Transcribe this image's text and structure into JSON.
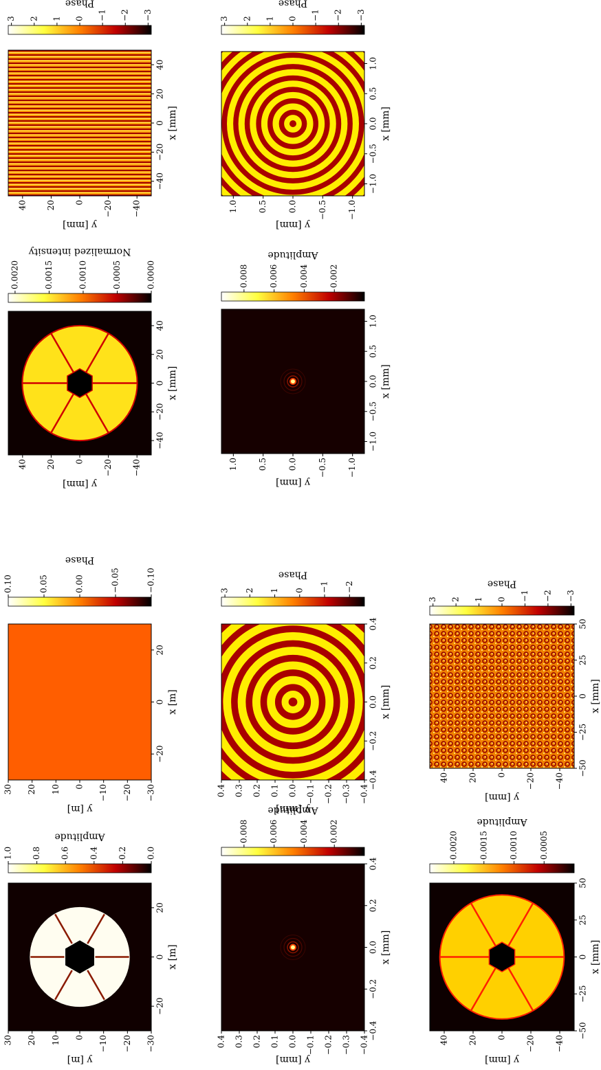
{
  "chart_data": [
    {
      "type": "heatmap",
      "xlabel": "x [m]",
      "ylabel": "y [m]",
      "xlim": [
        -30,
        30
      ],
      "ylim": [
        -30,
        30
      ],
      "xticks": [
        {
          "value": -20,
          "label": "−20"
        },
        0,
        20
      ],
      "yticks": [
        30,
        20,
        10,
        0,
        {
          "value": -10,
          "label": "−10"
        },
        {
          "value": -20,
          "label": "−20"
        },
        {
          "value": -30,
          "label": "−30"
        }
      ],
      "colorbar": {
        "label": "Amplitude",
        "lim": [
          0,
          1.0
        ],
        "ticks": [
          {
            "value": 1.0,
            "label": "1.0"
          },
          {
            "value": 0.8,
            "label": "0.8"
          },
          {
            "value": 0.6,
            "label": "0.6"
          },
          {
            "value": 0.4,
            "label": "0.4"
          },
          {
            "value": 0.2,
            "label": "0.2"
          },
          {
            "value": 0,
            "label": "0.0"
          }
        ]
      }
    },
    {
      "type": "heatmap",
      "xlabel": "x [m]",
      "ylabel": "y [m]",
      "xlim": [
        -30,
        30
      ],
      "ylim": [
        -30,
        30
      ],
      "xticks": [
        {
          "value": -20,
          "label": "−20"
        },
        0,
        20
      ],
      "yticks": [
        30,
        20,
        10,
        0,
        {
          "value": -10,
          "label": "−10"
        },
        {
          "value": -20,
          "label": "−20"
        },
        {
          "value": -30,
          "label": "−30"
        }
      ],
      "colorbar": {
        "label": "Phase",
        "lim": [
          -0.1,
          0.1
        ],
        "ticks": [
          {
            "value": 0.1,
            "label": "0.10"
          },
          {
            "value": 0.05,
            "label": "0.05"
          },
          {
            "value": 0,
            "label": "0.00"
          },
          {
            "value": -0.05,
            "label": "−0.05"
          },
          {
            "value": -0.1,
            "label": "−0.10"
          }
        ]
      }
    },
    {
      "type": "heatmap",
      "xlabel": "x [mm]",
      "ylabel": "y [mm]",
      "xlim": [
        -50,
        50
      ],
      "ylim": [
        -50,
        50
      ],
      "xticks": [
        {
          "value": -40,
          "label": "−40"
        },
        {
          "value": -20,
          "label": "−20"
        },
        0,
        20,
        40
      ],
      "yticks": [
        40,
        20,
        0,
        {
          "value": -20,
          "label": "−20"
        },
        {
          "value": -40,
          "label": "−40"
        }
      ],
      "colorbar": {
        "label": "Normalized intensity",
        "lim": [
          0,
          0.0021
        ],
        "ticks": [
          {
            "value": 0.002,
            "label": "0.0020"
          },
          {
            "value": 0.0015,
            "label": "0.0015"
          },
          {
            "value": 0.001,
            "label": "0.0010"
          },
          {
            "value": 0.0005,
            "label": "0.0005"
          },
          {
            "value": 0,
            "label": "0.0000"
          }
        ]
      }
    },
    {
      "type": "heatmap",
      "xlabel": "x [mm]",
      "ylabel": "y [mm]",
      "xlim": [
        -50,
        50
      ],
      "ylim": [
        -50,
        50
      ],
      "xticks": [
        {
          "value": -40,
          "label": "−40"
        },
        {
          "value": -20,
          "label": "−20"
        },
        0,
        20,
        40
      ],
      "yticks": [
        40,
        20,
        0,
        {
          "value": -20,
          "label": "−20"
        },
        {
          "value": -40,
          "label": "−40"
        }
      ],
      "colorbar": {
        "label": "Phase",
        "lim": [
          -3.14,
          3.14
        ],
        "ticks": [
          3,
          2,
          1,
          0,
          {
            "value": -1,
            "label": "−1"
          },
          {
            "value": -2,
            "label": "−2"
          },
          {
            "value": -3,
            "label": "−3"
          }
        ]
      }
    },
    {
      "type": "heatmap",
      "xlabel": "x [mm]",
      "ylabel": "y [mm]",
      "xlim": [
        -0.4,
        0.4
      ],
      "ylim": [
        -0.4,
        0.4
      ],
      "xticks": [
        {
          "value": -0.4,
          "label": "−0.4"
        },
        {
          "value": -0.2,
          "label": "−0.2"
        },
        {
          "value": 0,
          "label": "0.0"
        },
        0.2,
        0.4
      ],
      "yticks": [
        0.4,
        0.3,
        0.2,
        0.1,
        {
          "value": 0,
          "label": "0.0"
        },
        {
          "value": -0.1,
          "label": "−0.1"
        },
        {
          "value": -0.2,
          "label": "−0.2"
        },
        {
          "value": -0.3,
          "label": "−0.3"
        },
        {
          "value": -0.4,
          "label": "−0.4"
        }
      ],
      "colorbar": {
        "label": "Amplitude",
        "lim": [
          0,
          0.0095
        ],
        "ticks": [
          0.008,
          0.006,
          0.004,
          0.002
        ]
      }
    },
    {
      "type": "heatmap",
      "xlabel": "x [mm]",
      "ylabel": "y [mm]",
      "xlim": [
        -0.4,
        0.4
      ],
      "ylim": [
        -0.4,
        0.4
      ],
      "xticks": [
        {
          "value": -0.4,
          "label": "−0.4"
        },
        {
          "value": -0.2,
          "label": "−0.2"
        },
        {
          "value": 0,
          "label": "0.0"
        },
        0.2,
        0.4
      ],
      "yticks": [
        0.4,
        0.3,
        0.2,
        0.1,
        {
          "value": 0,
          "label": "0.0"
        },
        {
          "value": -0.1,
          "label": "−0.1"
        },
        {
          "value": -0.2,
          "label": "−0.2"
        },
        {
          "value": -0.3,
          "label": "−0.3"
        },
        {
          "value": -0.4,
          "label": "−0.4"
        }
      ],
      "colorbar": {
        "label": "Phase",
        "lim": [
          -2.6,
          3.14
        ],
        "ticks": [
          3,
          2,
          1,
          0,
          {
            "value": -1,
            "label": "−1"
          },
          {
            "value": -2,
            "label": "−2"
          }
        ]
      }
    },
    {
      "type": "heatmap",
      "xlabel": "x [mm]",
      "ylabel": "y [mm]",
      "xlim": [
        -1.2,
        1.2
      ],
      "ylim": [
        -1.2,
        1.2
      ],
      "xticks": [
        {
          "value": -1,
          "label": "−1.0"
        },
        {
          "value": -0.5,
          "label": "−0.5"
        },
        {
          "value": 0,
          "label": "0.0"
        },
        0.5,
        {
          "value": 1,
          "label": "1.0"
        }
      ],
      "yticks": [
        {
          "value": 1,
          "label": "1.0"
        },
        0.5,
        {
          "value": 0,
          "label": "0.0"
        },
        {
          "value": -0.5,
          "label": "−0.5"
        },
        {
          "value": -1,
          "label": "−1.0"
        }
      ],
      "colorbar": {
        "label": "Amplitude",
        "lim": [
          0,
          0.0095
        ],
        "ticks": [
          0.008,
          0.006,
          0.004,
          0.002
        ]
      }
    },
    {
      "type": "heatmap",
      "xlabel": "x [mm]",
      "ylabel": "y [mm]",
      "xlim": [
        -1.2,
        1.2
      ],
      "ylim": [
        -1.2,
        1.2
      ],
      "xticks": [
        {
          "value": -1,
          "label": "−1.0"
        },
        {
          "value": -0.5,
          "label": "−0.5"
        },
        {
          "value": 0,
          "label": "0.0"
        },
        0.5,
        {
          "value": 1,
          "label": "1.0"
        }
      ],
      "yticks": [
        {
          "value": 1,
          "label": "1.0"
        },
        0.5,
        {
          "value": 0,
          "label": "0.0"
        },
        {
          "value": -0.5,
          "label": "−0.5"
        },
        {
          "value": -1,
          "label": "−1.0"
        }
      ],
      "colorbar": {
        "label": "Phase",
        "lim": [
          -3.14,
          3.14
        ],
        "ticks": [
          3,
          2,
          1,
          0,
          {
            "value": -1,
            "label": "−1"
          },
          {
            "value": -2,
            "label": "−2"
          },
          {
            "value": -3,
            "label": "−3"
          }
        ]
      }
    },
    {
      "type": "heatmap",
      "xlabel": "x [mm]",
      "ylabel": "y [mm]",
      "xlim": [
        -50,
        50
      ],
      "ylim": [
        -50,
        50
      ],
      "xticks": [
        {
          "value": -50,
          "label": "−50"
        },
        {
          "value": -25,
          "label": "−25"
        },
        0,
        25,
        50
      ],
      "yticks": [
        40,
        20,
        0,
        {
          "value": -20,
          "label": "−20"
        },
        {
          "value": -40,
          "label": "−40"
        }
      ],
      "colorbar": {
        "label": "Amplitude",
        "lim": [
          0,
          0.0024
        ],
        "ticks": [
          {
            "value": 0.002,
            "label": "0.0020"
          },
          0.0015,
          {
            "value": 0.001,
            "label": "0.0010"
          },
          0.0005
        ]
      }
    },
    {
      "type": "heatmap",
      "xlabel": "x [mm]",
      "ylabel": "y [mm]",
      "xlim": [
        -50,
        50
      ],
      "ylim": [
        -50,
        50
      ],
      "xticks": [
        {
          "value": -50,
          "label": "−50"
        },
        {
          "value": -25,
          "label": "−25"
        },
        0,
        25,
        50
      ],
      "yticks": [
        40,
        20,
        0,
        {
          "value": -20,
          "label": "−20"
        },
        {
          "value": -40,
          "label": "−40"
        }
      ],
      "colorbar": {
        "label": "Phase",
        "lim": [
          -3.14,
          3.14
        ],
        "ticks": [
          3,
          2,
          1,
          0,
          {
            "value": -1,
            "label": "−1"
          },
          {
            "value": -2,
            "label": "−2"
          },
          {
            "value": -3,
            "label": "−3"
          }
        ]
      }
    }
  ]
}
